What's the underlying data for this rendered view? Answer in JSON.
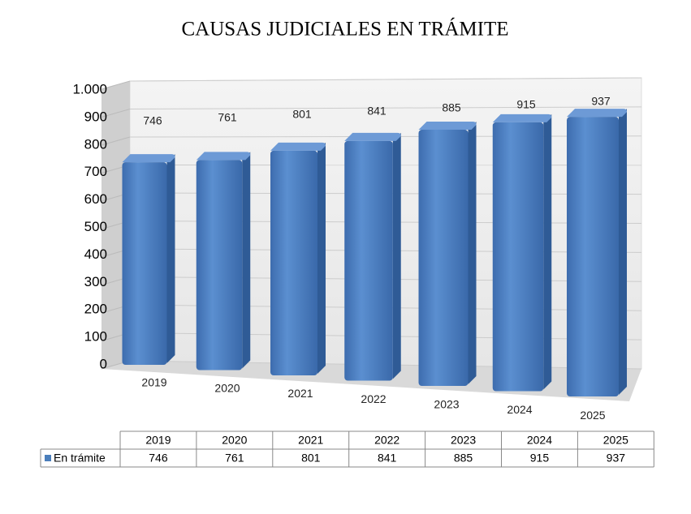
{
  "chart_data": {
    "type": "bar3d",
    "title": "CAUSAS JUDICIALES EN TRÁMITE",
    "categories": [
      "2019",
      "2020",
      "2021",
      "2022",
      "2023",
      "2024",
      "2025"
    ],
    "series": [
      {
        "name": "En trámite",
        "color": "#4a7ebb",
        "values": [
          746,
          761,
          801,
          841,
          885,
          915,
          937
        ]
      }
    ],
    "ylim": [
      0,
      1000
    ],
    "yticks": [
      0,
      100,
      200,
      300,
      400,
      500,
      600,
      700,
      800,
      900,
      {
        "value": 1000,
        "label": "1.000"
      }
    ],
    "grid": true,
    "data_table": true
  }
}
